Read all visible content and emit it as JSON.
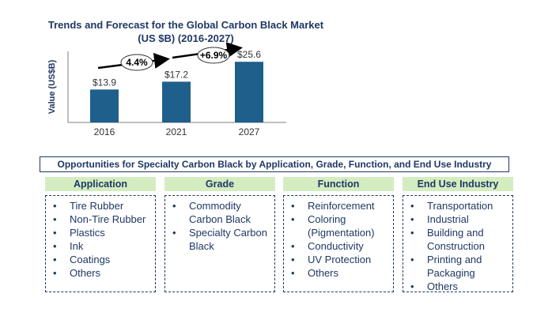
{
  "chart_data": {
    "type": "bar",
    "title": "Trends and Forecast for the Global Carbon Black Market",
    "subtitle": "(US $B) (2016-2027)",
    "ylabel": "Value (US$B)",
    "categories": [
      "2016",
      "2021",
      "2027"
    ],
    "values": [
      13.9,
      17.2,
      25.6
    ],
    "value_labels": [
      "$13.9",
      "$17.2",
      "$25.6"
    ],
    "ylim": [
      0,
      30
    ],
    "growth_annotations": [
      "4.4%",
      "+6.9%"
    ],
    "bar_color": "#1f5f8b",
    "grid": false
  },
  "banner": "Opportunities for Specialty Carbon Black by Application, Grade, Function, and End Use Industry",
  "columns": [
    {
      "heading": "Application",
      "items": [
        "Tire Rubber",
        "Non-Tire Rubber",
        "Plastics",
        "Ink",
        "Coatings",
        "Others"
      ]
    },
    {
      "heading": "Grade",
      "items": [
        "Commodity Carbon Black",
        "Specialty Carbon Black"
      ]
    },
    {
      "heading": "Function",
      "items": [
        "Reinforcement",
        "Coloring (Pigmentation)",
        "Conductivity",
        "UV Protection",
        "Others"
      ]
    },
    {
      "heading": "End Use Industry",
      "items": [
        "Transportation",
        "Industrial",
        "Building and Construction",
        "Printing and Packaging",
        "Others"
      ]
    }
  ],
  "colors": {
    "title": "#1f3864",
    "header_fill": "#d4edc0",
    "text": "#1f3864"
  }
}
